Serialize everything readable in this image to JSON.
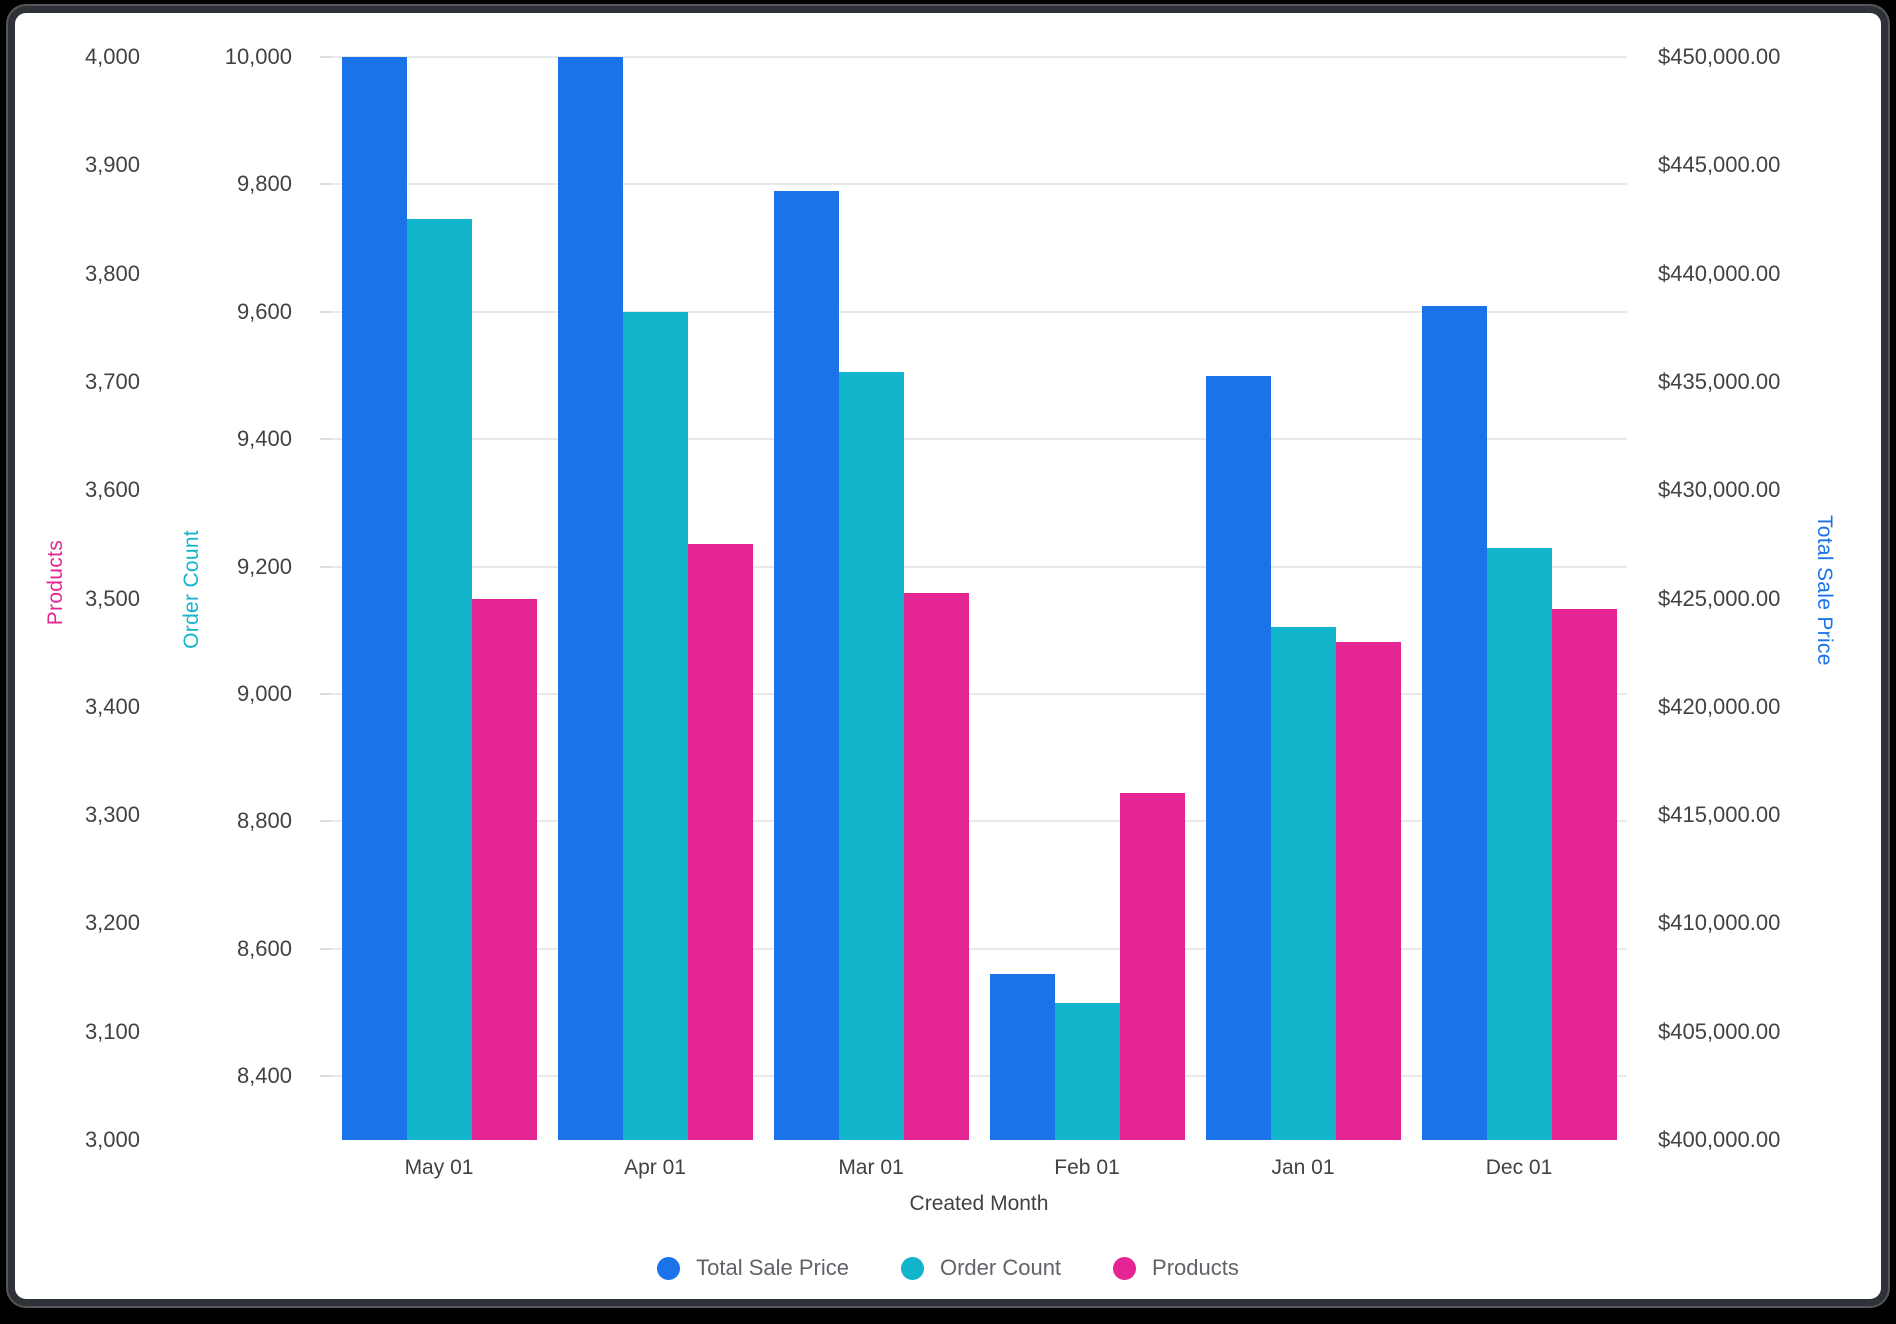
{
  "chart_data": {
    "type": "bar",
    "title": "",
    "xlabel": "Created Month",
    "categories": [
      "May 01",
      "Apr 01",
      "Mar 01",
      "Feb 01",
      "Jan 01",
      "Dec 01"
    ],
    "series": [
      {
        "name": "Total Sale Price",
        "axis": "money",
        "color": "#1a73e8",
        "values": [
          450000,
          450000,
          443800,
          407650,
          435250,
          438500
        ]
      },
      {
        "name": "Order Count",
        "axis": "count",
        "color": "#12b5cb",
        "values": [
          9745,
          9600,
          9505,
          8515,
          9105,
          9230
        ]
      },
      {
        "name": "Products",
        "axis": "products",
        "color": "#e52592",
        "values": [
          3500,
          3550,
          3505,
          3320,
          3460,
          3490
        ]
      }
    ],
    "axes": {
      "products": {
        "title": "Products",
        "color": "#e52592",
        "min": 3000,
        "max": 4000,
        "tick_values": [
          4000,
          3900,
          3800,
          3700,
          3600,
          3500,
          3400,
          3300,
          3200,
          3100,
          3000
        ],
        "tick_labels": [
          "4,000",
          "3,900",
          "3,800",
          "3,700",
          "3,600",
          "3,500",
          "3,400",
          "3,300",
          "3,200",
          "3,100",
          "3,000"
        ]
      },
      "count": {
        "title": "Order Count",
        "color": "#12b5cb",
        "min": 8300,
        "max": 10000,
        "tick_values": [
          10000,
          9800,
          9600,
          9400,
          9200,
          9000,
          8800,
          8600,
          8400
        ],
        "tick_labels": [
          "10,000",
          "9,800",
          "9,600",
          "9,400",
          "9,200",
          "9,000",
          "8,800",
          "8,600",
          "8,400"
        ]
      },
      "money": {
        "title": "Total Sale Price",
        "color": "#1a73e8",
        "min": 400000,
        "max": 450000,
        "tick_values": [
          450000,
          445000,
          440000,
          435000,
          430000,
          425000,
          420000,
          415000,
          410000,
          405000,
          400000
        ],
        "tick_labels": [
          "$450,000.00",
          "$445,000.00",
          "$440,000.00",
          "$435,000.00",
          "$430,000.00",
          "$425,000.00",
          "$420,000.00",
          "$415,000.00",
          "$410,000.00",
          "$405,000.00",
          "$400,000.00"
        ]
      }
    },
    "grid": {
      "on": true,
      "follows_axis": "count",
      "color": "#e9e9e9"
    },
    "legend": {
      "position": "bottom",
      "items": [
        "Total Sale Price",
        "Order Count",
        "Products"
      ]
    }
  },
  "style": {
    "tick_text_color": "#424242",
    "legend_text_color": "#5f6368"
  }
}
